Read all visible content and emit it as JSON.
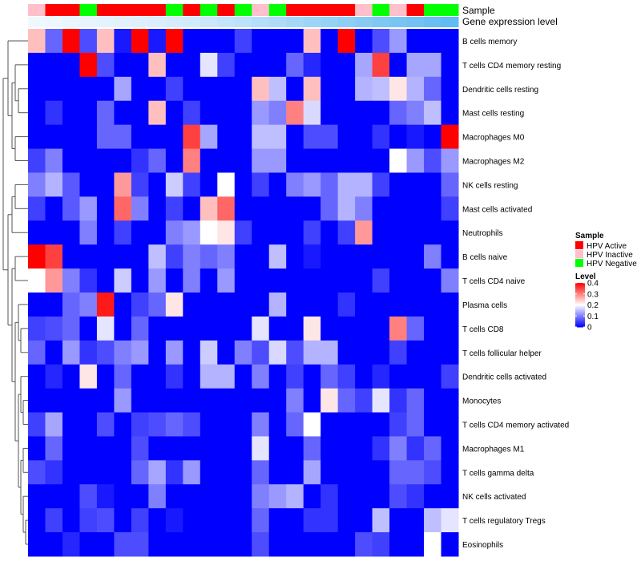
{
  "chart_data": {
    "type": "heatmap",
    "title": "",
    "annotation_rows": [
      "Sample",
      "Gene expression level"
    ],
    "sample_groups": [
      "Inactive",
      "Active",
      "Active",
      "Negative",
      "Active",
      "Active",
      "Active",
      "Active",
      "Negative",
      "Active",
      "Negative",
      "Active",
      "Negative",
      "Inactive",
      "Negative",
      "Active",
      "Active",
      "Active",
      "Active",
      "Inactive",
      "Negative",
      "Inactive",
      "Active",
      "Negative",
      "Negative"
    ],
    "expression_level": [
      0.0,
      0.02,
      0.04,
      0.06,
      0.08,
      0.1,
      0.12,
      0.15,
      0.18,
      0.21,
      0.25,
      0.3,
      0.35,
      0.4,
      0.45,
      0.5,
      0.55,
      0.6,
      0.65,
      0.7,
      0.75,
      0.8,
      0.85,
      0.9,
      0.95
    ],
    "rows": [
      "B cells memory",
      "T cells CD4 memory resting",
      "Dendritic cells resting",
      "Mast cells resting",
      "Macrophages M0",
      "Macrophages M2",
      "NK cells resting",
      "Mast cells activated",
      "Neutrophils",
      "B cells naive",
      "T cells CD4 naive",
      "Plasma cells",
      "T cells CD8",
      "T cells follicular helper",
      "Dendritic cells activated",
      "Monocytes",
      "T cells CD4 memory activated",
      "Macrophages M1",
      "T cells gamma delta",
      "NK cells activated",
      "T cells regulatory  Tregs",
      "Eosinophils"
    ],
    "values": [
      [
        0.25,
        0.08,
        0.4,
        0.06,
        0.25,
        0.02,
        0.4,
        0.02,
        0.4,
        0,
        0,
        0,
        0.05,
        0,
        0,
        0,
        0.25,
        0,
        0.4,
        0,
        0.06,
        0.12,
        0,
        0,
        0
      ],
      [
        0,
        0,
        0,
        0.4,
        0.06,
        0,
        0,
        0.25,
        0,
        0,
        0.18,
        0.05,
        0,
        0,
        0,
        0.08,
        0.03,
        0,
        0,
        0.13,
        0.35,
        0,
        0.13,
        0.13,
        0
      ],
      [
        0,
        0,
        0,
        0,
        0,
        0.13,
        0,
        0,
        0.05,
        0,
        0,
        0,
        0,
        0.25,
        0.15,
        0,
        0.25,
        0,
        0,
        0.14,
        0.15,
        0.22,
        0.14,
        0.08,
        0
      ],
      [
        0,
        0.04,
        0,
        0,
        0.08,
        0,
        0,
        0.25,
        0,
        0.05,
        0,
        0,
        0,
        0.12,
        0.1,
        0.3,
        0.17,
        0,
        0,
        0,
        0,
        0.08,
        0.1,
        0.15,
        0
      ],
      [
        0,
        0,
        0,
        0,
        0.08,
        0.08,
        0,
        0,
        0,
        0.35,
        0.13,
        0,
        0,
        0.15,
        0.15,
        0,
        0.06,
        0.06,
        0,
        0,
        0.04,
        0,
        0.02,
        0,
        0.4
      ],
      [
        0.05,
        0.1,
        0,
        0,
        0,
        0,
        0.04,
        0.08,
        0,
        0.3,
        0,
        0,
        0,
        0.12,
        0.12,
        0,
        0,
        0,
        0,
        0,
        0,
        0.2,
        0.12,
        0.06,
        0.12
      ],
      [
        0.1,
        0.14,
        0.07,
        0,
        0,
        0.28,
        0.05,
        0,
        0.16,
        0.05,
        0,
        0.2,
        0,
        0.05,
        0,
        0.1,
        0.12,
        0.08,
        0.14,
        0.14,
        0.05,
        0,
        0,
        0,
        0.08
      ],
      [
        0.05,
        0,
        0.07,
        0.12,
        0,
        0.32,
        0.1,
        0,
        0.05,
        0,
        0.25,
        0.32,
        0,
        0,
        0,
        0,
        0,
        0.08,
        0.14,
        0.1,
        0,
        0,
        0,
        0,
        0.05
      ],
      [
        0,
        0,
        0,
        0.1,
        0,
        0.05,
        0,
        0,
        0.1,
        0.12,
        0.2,
        0.22,
        0.05,
        0,
        0,
        0,
        0.05,
        0,
        0.05,
        0.28,
        0,
        0,
        0,
        0,
        0
      ],
      [
        0.4,
        0.35,
        0,
        0,
        0,
        0,
        0,
        0.15,
        0.05,
        0.1,
        0.08,
        0.1,
        0,
        0,
        0.15,
        0,
        0.02,
        0,
        0,
        0,
        0,
        0,
        0,
        0.1,
        0
      ],
      [
        0.2,
        0.28,
        0.1,
        0.04,
        0,
        0.16,
        0,
        0.12,
        0,
        0.1,
        0,
        0.12,
        0,
        0,
        0,
        0,
        0,
        0,
        0,
        0,
        0.05,
        0,
        0,
        0,
        0.1
      ],
      [
        0,
        0,
        0.08,
        0.1,
        0.38,
        0,
        0.05,
        0.08,
        0.22,
        0,
        0,
        0,
        0,
        0,
        0.14,
        0,
        0,
        0,
        0.04,
        0,
        0,
        0,
        0,
        0,
        0
      ],
      [
        0.05,
        0.06,
        0.08,
        0,
        0.18,
        0,
        0.08,
        0,
        0,
        0,
        0,
        0,
        0,
        0.18,
        0,
        0,
        0.22,
        0,
        0,
        0,
        0,
        0.3,
        0.08,
        0,
        0
      ],
      [
        0.08,
        0,
        0.12,
        0.04,
        0.06,
        0.1,
        0.12,
        0,
        0.12,
        0,
        0.16,
        0,
        0.1,
        0.06,
        0.17,
        0.06,
        0.14,
        0.14,
        0,
        0,
        0,
        0.05,
        0,
        0,
        0
      ],
      [
        0,
        0.03,
        0,
        0.22,
        0,
        0.08,
        0,
        0,
        0.04,
        0,
        0.14,
        0.14,
        0,
        0.1,
        0,
        0.05,
        0,
        0.08,
        0.05,
        0,
        0.03,
        0,
        0,
        0,
        0.05
      ],
      [
        0,
        0,
        0,
        0,
        0,
        0.12,
        0,
        0,
        0,
        0,
        0,
        0,
        0,
        0,
        0,
        0.1,
        0,
        0.22,
        0.08,
        0.05,
        0.18,
        0.04,
        0.08,
        0,
        0
      ],
      [
        0.05,
        0.13,
        0,
        0,
        0.06,
        0,
        0.05,
        0.06,
        0.08,
        0.06,
        0,
        0,
        0,
        0.1,
        0,
        0.08,
        0.2,
        0,
        0,
        0,
        0,
        0.05,
        0.08,
        0,
        0
      ],
      [
        0,
        0.08,
        0,
        0,
        0,
        0,
        0.06,
        0,
        0,
        0,
        0,
        0,
        0,
        0.18,
        0,
        0,
        0.08,
        0,
        0,
        0,
        0.04,
        0.1,
        0.04,
        0.08,
        0
      ],
      [
        0.06,
        0.04,
        0,
        0,
        0,
        0,
        0.08,
        0.13,
        0.04,
        0.12,
        0,
        0,
        0,
        0.08,
        0,
        0,
        0.13,
        0,
        0,
        0,
        0,
        0.08,
        0.08,
        0.06,
        0
      ],
      [
        0,
        0,
        0,
        0.06,
        0.02,
        0,
        0,
        0.1,
        0,
        0,
        0,
        0,
        0,
        0.1,
        0.12,
        0.14,
        0,
        0.04,
        0,
        0,
        0,
        0.06,
        0.04,
        0,
        0
      ],
      [
        0,
        0.05,
        0,
        0.05,
        0.06,
        0,
        0.05,
        0,
        0.02,
        0,
        0,
        0,
        0,
        0.08,
        0,
        0,
        0.04,
        0.04,
        0,
        0,
        0.15,
        0,
        0,
        0.15,
        0.18
      ],
      [
        0,
        0,
        0.03,
        0,
        0,
        0.06,
        0.06,
        0,
        0,
        0,
        0,
        0,
        0,
        0.06,
        0,
        0,
        0,
        0,
        0,
        0.06,
        0.05,
        0,
        0,
        0.2,
        0
      ]
    ],
    "dendrogram_leaf_order": [
      "B cells memory",
      "T cells CD4 memory resting",
      "Dendritic cells resting",
      "Mast cells resting",
      "Macrophages M0",
      "Macrophages M2",
      "NK cells resting",
      "Mast cells activated",
      "Neutrophils",
      "B cells naive",
      "T cells CD4 naive",
      "Plasma cells",
      "T cells CD8",
      "T cells follicular helper",
      "Dendritic cells activated",
      "Monocytes",
      "T cells CD4 memory activated",
      "Macrophages M1",
      "T cells gamma delta",
      "NK cells activated",
      "T cells regulatory  Tregs",
      "Eosinophils"
    ],
    "legends": {
      "sample": {
        "title": "Sample",
        "items": [
          {
            "label": "HPV Active",
            "color": "#ff0000"
          },
          {
            "label": "HPV Inactive",
            "color": "#ffc0cb"
          },
          {
            "label": "HPV Negative",
            "color": "#00ff00"
          }
        ]
      },
      "level": {
        "title": "Level",
        "ticks": [
          0.4,
          0.3,
          0.2,
          0.1,
          0
        ],
        "range": [
          0,
          0.4
        ]
      }
    },
    "colors": {
      "low": "#0000ff",
      "mid": "#ffffff",
      "high": "#ff0000",
      "gene_low": "#f0f8ff",
      "gene_high": "#5ab8f0"
    }
  }
}
